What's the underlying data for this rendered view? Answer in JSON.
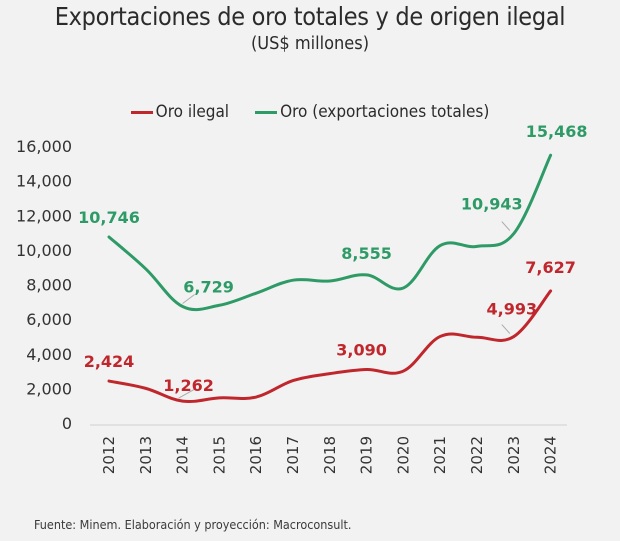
{
  "chart_data": {
    "type": "line",
    "title": "Exportaciones de oro totales y de origen ilegal",
    "subtitle": "(US$ millones)",
    "xlabel": "",
    "ylabel": "",
    "x": [
      "2012",
      "2013",
      "2014",
      "2015",
      "2016",
      "2017",
      "2018",
      "2019",
      "2020",
      "2021",
      "2022",
      "2023",
      "2024"
    ],
    "ylim": [
      0,
      16000
    ],
    "yticks": [
      0,
      2000,
      4000,
      6000,
      8000,
      10000,
      12000,
      14000,
      16000
    ],
    "ytick_labels": [
      "0",
      "2,000",
      "4,000",
      "6,000",
      "8,000",
      "10,000",
      "12,000",
      "14,000",
      "16,000"
    ],
    "grid": false,
    "legend_position": "top-center",
    "series": [
      {
        "name": "Oro ilegal",
        "color": "#c0272d",
        "values": [
          2424,
          2000,
          1262,
          1450,
          1500,
          2450,
          2850,
          3090,
          3000,
          5000,
          4950,
          4993,
          7627
        ],
        "labels": [
          {
            "year": "2012",
            "text": "2,424"
          },
          {
            "year": "2014",
            "text": "1,262"
          },
          {
            "year": "2019",
            "text": "3,090"
          },
          {
            "year": "2023",
            "text": "4,993"
          },
          {
            "year": "2024",
            "text": "7,627"
          }
        ]
      },
      {
        "name": "Oro (exportaciones totales)",
        "color": "#2e9b67",
        "values": [
          10746,
          8900,
          6729,
          6800,
          7500,
          8250,
          8200,
          8555,
          7800,
          10250,
          10200,
          10943,
          15468
        ],
        "labels": [
          {
            "year": "2012",
            "text": "10,746"
          },
          {
            "year": "2014",
            "text": "6,729"
          },
          {
            "year": "2019",
            "text": "8,555"
          },
          {
            "year": "2023",
            "text": "10,943"
          },
          {
            "year": "2024",
            "text": "15,468"
          }
        ]
      }
    ],
    "source": "Fuente: Minem. Elaboración y proyección: Macroconsult."
  }
}
